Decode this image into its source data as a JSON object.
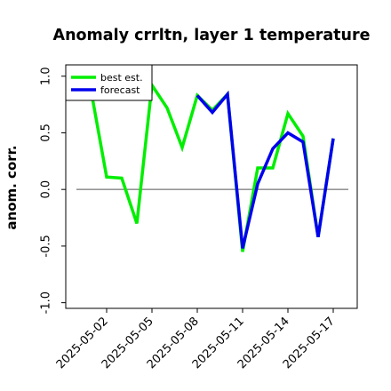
{
  "chart_data": {
    "type": "line",
    "title": "Anomaly crrltn, layer 1 temperature",
    "ylabel": "anom. corr.",
    "xlabel": "",
    "ylim": [
      -1.05,
      1.1
    ],
    "yticks": [
      -1.0,
      -0.5,
      0.0,
      0.5,
      1.0
    ],
    "ytick_labels": [
      "-1.0",
      "-0.5",
      "0.0",
      "0.5",
      "1.0"
    ],
    "x": [
      "2025-04-30",
      "2025-05-01",
      "2025-05-02",
      "2025-05-03",
      "2025-05-04",
      "2025-05-05",
      "2025-05-06",
      "2025-05-07",
      "2025-05-08",
      "2025-05-09",
      "2025-05-10",
      "2025-05-11",
      "2025-05-12",
      "2025-05-13",
      "2025-05-14",
      "2025-05-15",
      "2025-05-16",
      "2025-05-17"
    ],
    "xticks": [
      "2025-05-02",
      "2025-05-05",
      "2025-05-08",
      "2025-05-11",
      "2025-05-14",
      "2025-05-17"
    ],
    "highlight_tick": "2025-05-08",
    "highlight_color": "#228b22",
    "zero_line": true,
    "grid": false,
    "legend_position": "top-left",
    "series": [
      {
        "name": "best est.",
        "color": "#00ee00",
        "values": [
          null,
          0.85,
          0.11,
          0.1,
          -0.3,
          0.92,
          0.72,
          0.37,
          0.83,
          0.7,
          0.84,
          -0.55,
          0.19,
          0.19,
          0.67,
          0.47,
          -0.42,
          0.45
        ]
      },
      {
        "name": "forecast",
        "color": "#0000ee",
        "values": [
          null,
          null,
          null,
          null,
          null,
          null,
          null,
          null,
          0.83,
          0.68,
          0.84,
          -0.52,
          0.05,
          0.36,
          0.5,
          0.42,
          -0.42,
          0.45
        ]
      }
    ]
  }
}
